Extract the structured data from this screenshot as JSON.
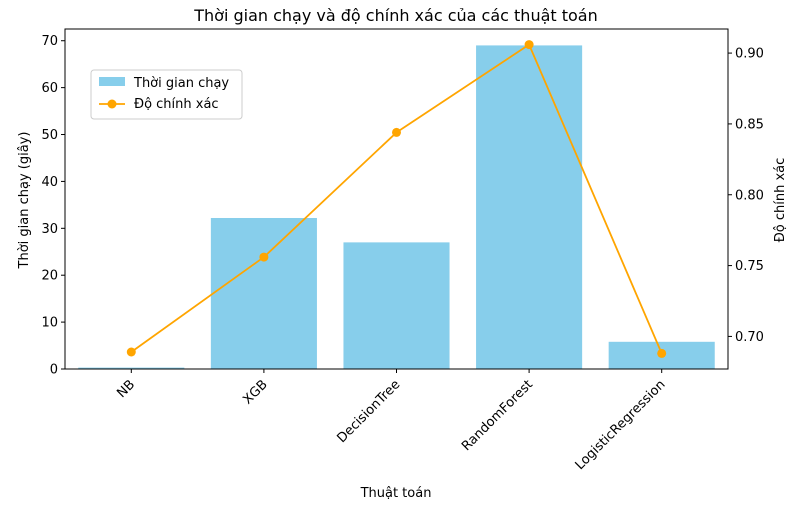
{
  "chart_data": {
    "type": "bar",
    "title": "Thời gian chạy và độ chính xác của các thuật toán",
    "xlabel": "Thuật toán",
    "ylabel": "Thời gian chạy (giây)",
    "y2label": "Độ chính xác",
    "categories": [
      "NB",
      "XGB",
      "DecisionTree",
      "RandomForest",
      "LogisticRegression"
    ],
    "series": [
      {
        "name": "Thời gian chạy",
        "type": "bar",
        "axis": "left",
        "color": "#87ceeb",
        "values": [
          0.3,
          32.2,
          27.0,
          69.0,
          5.8
        ]
      },
      {
        "name": "Độ chính xác",
        "type": "line",
        "axis": "right",
        "color": "#ffa500",
        "values": [
          0.689,
          0.756,
          0.844,
          0.906,
          0.688
        ]
      }
    ],
    "ylim": [
      0,
      72.5
    ],
    "yticks": [
      "0",
      "10",
      "20",
      "30",
      "40",
      "50",
      "60",
      "70"
    ],
    "y2lim": [
      0.677,
      0.917
    ],
    "y2ticks": [
      "0.70",
      "0.75",
      "0.80",
      "0.85",
      "0.90"
    ],
    "grid": false,
    "legend_position": "upper-left"
  }
}
